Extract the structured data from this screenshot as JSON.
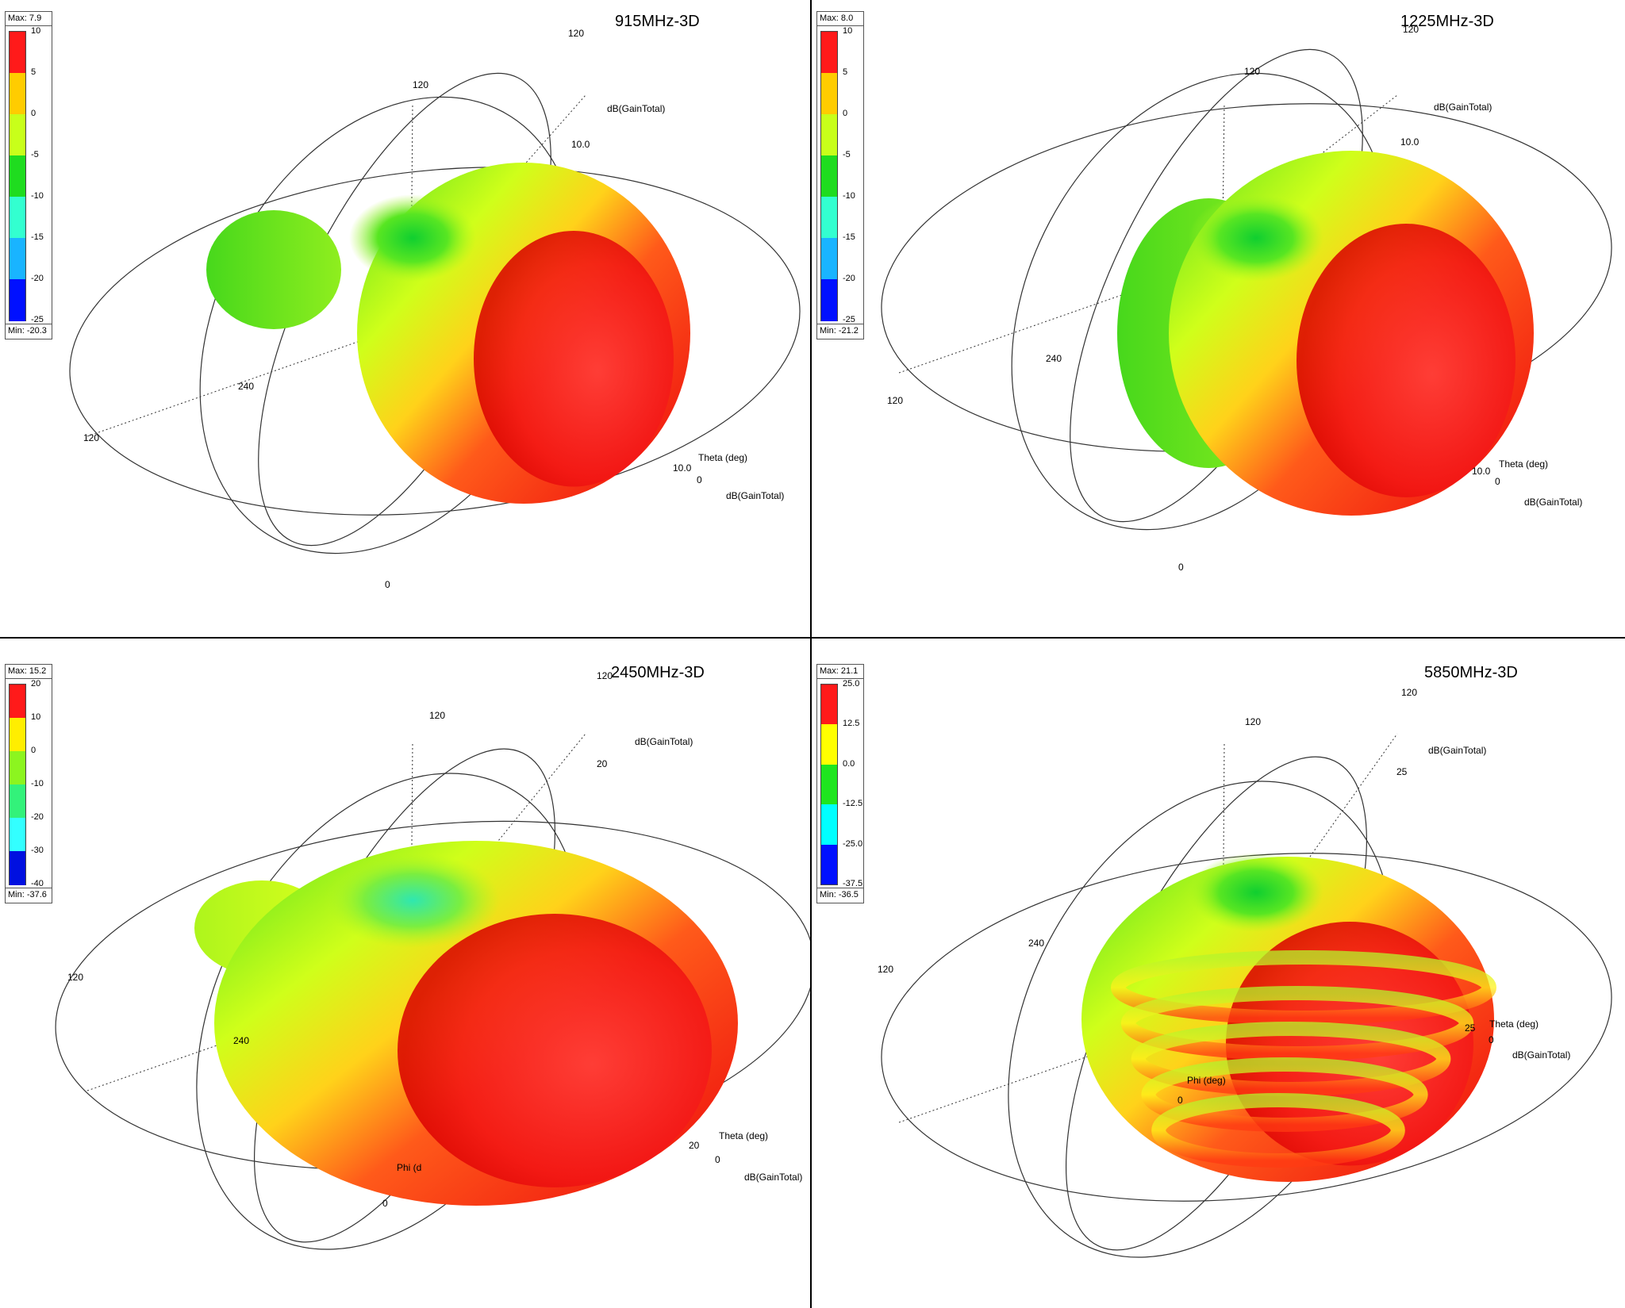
{
  "panels": [
    {
      "title": "915MHz-3D",
      "legend": {
        "max": "Max: 7.9",
        "min": "Min: -20.3",
        "ticks": [
          "10",
          "5",
          "0",
          "-5",
          "-10",
          "-15",
          "-20",
          "-25"
        ],
        "colors": [
          "#ff1a1a",
          "#ffcc00",
          "#c8ff1a",
          "#1fdc1f",
          "#33ffd0",
          "#19b4ff",
          "#0010ff"
        ]
      },
      "labels": {
        "gain_top": "dB(GainTotal)",
        "gain_bottom": "dB(GainTotal)",
        "theta": "Theta (deg)",
        "phi": "",
        "ring_top": "120",
        "ring_mid": "120",
        "ring_left": "120",
        "deg240": "240",
        "zero_bottom": "0",
        "zero_right": "0",
        "scale_top": "10.0",
        "scale_right": "10.0"
      }
    },
    {
      "title": "1225MHz-3D",
      "legend": {
        "max": "Max: 8.0",
        "min": "Min: -21.2",
        "ticks": [
          "10",
          "5",
          "0",
          "-5",
          "-10",
          "-15",
          "-20",
          "-25"
        ],
        "colors": [
          "#ff1a1a",
          "#ffcc00",
          "#c8ff1a",
          "#1fdc1f",
          "#33ffd0",
          "#19b4ff",
          "#0010ff"
        ]
      },
      "labels": {
        "gain_top": "dB(GainTotal)",
        "gain_bottom": "dB(GainTotal)",
        "theta": "Theta (deg)",
        "phi": "",
        "ring_top": "120",
        "ring_mid": "120",
        "ring_left": "120",
        "deg240": "240",
        "zero_bottom": "0",
        "zero_right": "0",
        "scale_top": "10.0",
        "scale_right": "10.0"
      }
    },
    {
      "title": "2450MHz-3D",
      "legend": {
        "max": "Max: 15.2",
        "min": "Min: -37.6",
        "ticks": [
          "20",
          "10",
          "0",
          "-10",
          "-20",
          "-30",
          "-40"
        ],
        "colors": [
          "#ff1a1a",
          "#ffee00",
          "#8cf51f",
          "#33f27a",
          "#33ffff",
          "#0010e0"
        ]
      },
      "labels": {
        "gain_top": "dB(GainTotal)",
        "gain_bottom": "dB(GainTotal)",
        "theta": "Theta (deg)",
        "phi": "Phi (d",
        "ring_top": "120",
        "ring_mid": "120",
        "ring_left": "120",
        "deg240": "240",
        "zero_bottom": "0",
        "zero_right": "0",
        "scale_top": "20",
        "scale_right": "20"
      }
    },
    {
      "title": "5850MHz-3D",
      "legend": {
        "max": "Max: 21.1",
        "min": "Min: -36.5",
        "ticks": [
          "25.0",
          "12.5",
          "0.0",
          "-12.5",
          "-25.0",
          "-37.5"
        ],
        "colors": [
          "#ff1a1a",
          "#ffff00",
          "#1fe61f",
          "#00ffff",
          "#0010ff"
        ]
      },
      "labels": {
        "gain_top": "dB(GainTotal)",
        "gain_bottom": "dB(GainTotal)",
        "theta": "Theta (deg)",
        "phi": "Phi (deg)",
        "ring_top": "120",
        "ring_mid": "120",
        "ring_left": "120",
        "deg240": "240",
        "zero_bottom": "0",
        "zero_right": "0",
        "scale_top": "25",
        "scale_right": "25"
      }
    }
  ],
  "chart_data": [
    {
      "type": "3d-radiation-pattern",
      "title": "915MHz-3D",
      "quantity": "dB(GainTotal)",
      "max": 7.9,
      "min": -20.3,
      "colorbar_range": [
        -25,
        10
      ]
    },
    {
      "type": "3d-radiation-pattern",
      "title": "1225MHz-3D",
      "quantity": "dB(GainTotal)",
      "max": 8.0,
      "min": -21.2,
      "colorbar_range": [
        -25,
        10
      ]
    },
    {
      "type": "3d-radiation-pattern",
      "title": "2450MHz-3D",
      "quantity": "dB(GainTotal)",
      "max": 15.2,
      "min": -37.6,
      "colorbar_range": [
        -40,
        20
      ]
    },
    {
      "type": "3d-radiation-pattern",
      "title": "5850MHz-3D",
      "quantity": "dB(GainTotal)",
      "max": 21.1,
      "min": -36.5,
      "colorbar_range": [
        -37.5,
        25.0
      ]
    }
  ]
}
